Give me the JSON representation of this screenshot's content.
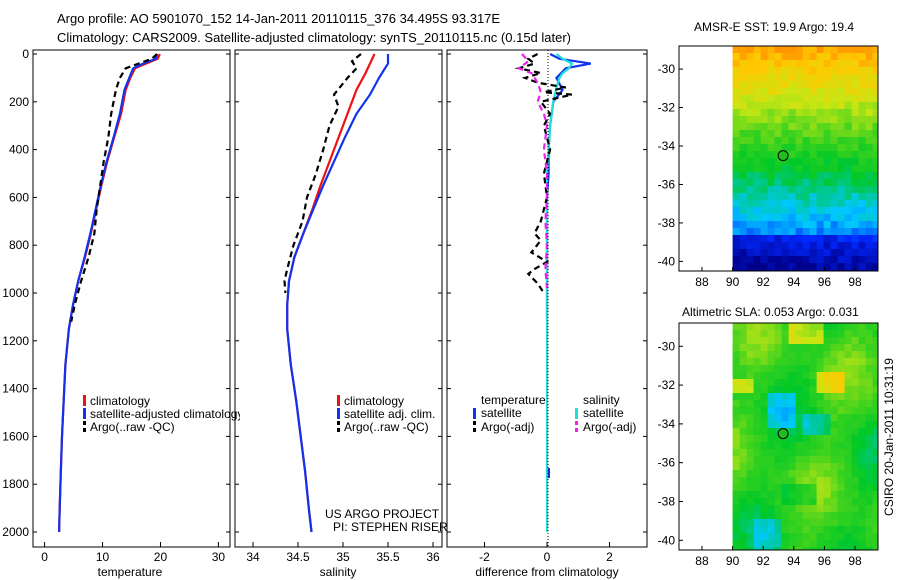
{
  "header": {
    "line1": "Argo profile: AO 5901070_152 14-Jan-2011 20110115_376 34.495S 93.317E",
    "line2": "Climatology: CARS2009. Satellite-adjusted climatology: synTS_20110115.nc (0.15d later)"
  },
  "side_label": "CSIRO 20-Jan-2011 10:31:19",
  "colors": {
    "climatology": "#ee1111",
    "satellite": "#1133ee",
    "argo": "#000000",
    "satellite_salinity": "#22dddd",
    "argo_salinity": "#ee22ee"
  },
  "chart_data": [
    {
      "type": "line",
      "id": "temperature",
      "xlabel": "temperature",
      "xlim": [
        -2,
        32
      ],
      "xticks": [
        0,
        10,
        20,
        30
      ],
      "ylim": [
        0,
        2080
      ],
      "yticks": [
        0,
        200,
        400,
        600,
        800,
        1000,
        1200,
        1400,
        1600,
        1800,
        2000
      ],
      "legend": [
        "climatology",
        "satellite-adjusted climatology",
        "Argo(..raw -QC)"
      ],
      "series": [
        {
          "name": "climatology",
          "style": "solid",
          "color": "#ee1111",
          "points": [
            [
              19.9,
              0
            ],
            [
              19.5,
              20
            ],
            [
              17.5,
              40
            ],
            [
              15.6,
              60
            ],
            [
              14.8,
              100
            ],
            [
              14.0,
              150
            ],
            [
              13.2,
              250
            ],
            [
              12.0,
              350
            ],
            [
              10.8,
              450
            ],
            [
              9.8,
              550
            ],
            [
              8.9,
              650
            ],
            [
              8.0,
              750
            ],
            [
              7.0,
              850
            ],
            [
              5.8,
              950
            ],
            [
              4.9,
              1050
            ],
            [
              4.2,
              1150
            ],
            [
              3.6,
              1300
            ],
            [
              3.3,
              1450
            ],
            [
              3.0,
              1600
            ],
            [
              2.8,
              1750
            ],
            [
              2.6,
              1900
            ],
            [
              2.5,
              2000
            ]
          ]
        },
        {
          "name": "satellite-adjusted climatology",
          "style": "solid",
          "color": "#1133ee",
          "points": [
            [
              19.4,
              0
            ],
            [
              19.2,
              20
            ],
            [
              17.0,
              40
            ],
            [
              15.3,
              60
            ],
            [
              14.6,
              100
            ],
            [
              13.8,
              150
            ],
            [
              13.0,
              250
            ],
            [
              11.9,
              350
            ],
            [
              10.7,
              450
            ],
            [
              9.7,
              550
            ],
            [
              8.8,
              650
            ],
            [
              7.9,
              750
            ],
            [
              6.9,
              850
            ],
            [
              5.8,
              950
            ],
            [
              4.9,
              1050
            ],
            [
              4.2,
              1150
            ],
            [
              3.6,
              1300
            ],
            [
              3.3,
              1450
            ],
            [
              3.0,
              1600
            ],
            [
              2.8,
              1750
            ],
            [
              2.6,
              1900
            ],
            [
              2.5,
              2000
            ]
          ]
        },
        {
          "name": "Argo(..raw -QC)",
          "style": "dashed",
          "color": "#000000",
          "points": [
            [
              19.4,
              0
            ],
            [
              18.5,
              20
            ],
            [
              16.2,
              40
            ],
            [
              14.0,
              60
            ],
            [
              13.0,
              100
            ],
            [
              12.3,
              150
            ],
            [
              11.5,
              250
            ],
            [
              11.0,
              350
            ],
            [
              10.2,
              450
            ],
            [
              9.6,
              550
            ],
            [
              9.0,
              650
            ],
            [
              8.6,
              750
            ],
            [
              7.6,
              850
            ],
            [
              6.3,
              950
            ],
            [
              5.2,
              1050
            ],
            [
              4.6,
              1120
            ]
          ]
        }
      ]
    },
    {
      "type": "line",
      "id": "salinity",
      "xlabel": "salinity",
      "xlim": [
        33.8,
        36.1
      ],
      "xticks": [
        34,
        34.5,
        35,
        35.5,
        36
      ],
      "ylim": [
        0,
        2080
      ],
      "legend": [
        "climatology",
        "satellite adj. clim.",
        "Argo(..raw -QC)"
      ],
      "series": [
        {
          "name": "climatology",
          "style": "solid",
          "color": "#ee1111",
          "points": [
            [
              35.35,
              0
            ],
            [
              35.3,
              40
            ],
            [
              35.25,
              80
            ],
            [
              35.15,
              150
            ],
            [
              35.05,
              250
            ],
            [
              34.95,
              350
            ],
            [
              34.85,
              450
            ],
            [
              34.75,
              550
            ],
            [
              34.66,
              650
            ],
            [
              34.56,
              750
            ],
            [
              34.46,
              850
            ],
            [
              34.4,
              950
            ],
            [
              34.38,
              1050
            ],
            [
              34.38,
              1150
            ],
            [
              34.42,
              1300
            ],
            [
              34.48,
              1450
            ],
            [
              34.53,
              1600
            ],
            [
              34.58,
              1750
            ],
            [
              34.62,
              1900
            ],
            [
              34.65,
              2000
            ]
          ]
        },
        {
          "name": "satellite adj. clim.",
          "style": "solid",
          "color": "#1133ee",
          "points": [
            [
              35.5,
              0
            ],
            [
              35.5,
              40
            ],
            [
              35.4,
              100
            ],
            [
              35.3,
              170
            ],
            [
              35.15,
              250
            ],
            [
              35.02,
              350
            ],
            [
              34.9,
              450
            ],
            [
              34.78,
              550
            ],
            [
              34.67,
              650
            ],
            [
              34.56,
              750
            ],
            [
              34.46,
              850
            ],
            [
              34.4,
              950
            ],
            [
              34.38,
              1050
            ],
            [
              34.38,
              1150
            ],
            [
              34.42,
              1300
            ],
            [
              34.48,
              1450
            ],
            [
              34.53,
              1600
            ],
            [
              34.58,
              1750
            ],
            [
              34.62,
              1900
            ],
            [
              34.65,
              2000
            ]
          ]
        },
        {
          "name": "Argo(..raw -QC)",
          "style": "dashed",
          "color": "#000000",
          "points": [
            [
              35.2,
              0
            ],
            [
              35.1,
              30
            ],
            [
              35.15,
              60
            ],
            [
              35.05,
              100
            ],
            [
              34.9,
              170
            ],
            [
              34.95,
              220
            ],
            [
              34.85,
              300
            ],
            [
              34.78,
              400
            ],
            [
              34.7,
              500
            ],
            [
              34.6,
              600
            ],
            [
              34.55,
              700
            ],
            [
              34.45,
              800
            ],
            [
              34.38,
              900
            ],
            [
              34.35,
              950
            ],
            [
              34.36,
              1000
            ]
          ]
        }
      ]
    },
    {
      "type": "line",
      "id": "difference",
      "xlabel": "difference from climatology",
      "xlim": [
        -3.2,
        3.2
      ],
      "xticks": [
        -2,
        0,
        2
      ],
      "ylim": [
        0,
        2080
      ],
      "legend_titles": [
        "temperature",
        "salinity"
      ],
      "legend": [
        "satellite",
        "Argo(-adj)",
        "satellite",
        "Argo(-adj)"
      ],
      "series": [
        {
          "name": "temperature satellite",
          "style": "solid",
          "color": "#1133ee",
          "points": [
            [
              0.1,
              0
            ],
            [
              0.4,
              20
            ],
            [
              1.4,
              40
            ],
            [
              0.6,
              60
            ],
            [
              0.3,
              100
            ],
            [
              0.5,
              150
            ],
            [
              0.2,
              200
            ],
            [
              0.1,
              300
            ],
            [
              0.05,
              400
            ],
            [
              0.05,
              500
            ],
            [
              0,
              600
            ],
            [
              0,
              800
            ],
            [
              0,
              1000
            ],
            [
              0,
              1100
            ]
          ]
        },
        {
          "name": "satellite salinity",
          "style": "solid",
          "color": "#22dddd",
          "points": [
            [
              0.3,
              0
            ],
            [
              0.5,
              20
            ],
            [
              0.8,
              40
            ],
            [
              0.7,
              60
            ],
            [
              0.5,
              80
            ],
            [
              0.4,
              100
            ],
            [
              0.3,
              140
            ],
            [
              0.2,
              200
            ],
            [
              0.1,
              300
            ],
            [
              0.05,
              400
            ],
            [
              0,
              500
            ],
            [
              0,
              800
            ],
            [
              0,
              1200
            ],
            [
              0,
              1600
            ],
            [
              0,
              2000
            ]
          ]
        },
        {
          "name": "temperature Argo(-adj)",
          "style": "dashed",
          "color": "#000000",
          "points": [
            [
              -0.3,
              0
            ],
            [
              -0.6,
              20
            ],
            [
              -0.4,
              40
            ],
            [
              -0.9,
              60
            ],
            [
              -0.2,
              80
            ],
            [
              -0.7,
              100
            ],
            [
              -0.3,
              120
            ],
            [
              0.6,
              140
            ],
            [
              -0.1,
              160
            ],
            [
              0.8,
              170
            ],
            [
              -0.2,
              200
            ],
            [
              0.1,
              250
            ],
            [
              -0.1,
              300
            ],
            [
              0.1,
              400
            ],
            [
              -0.1,
              500
            ],
            [
              0,
              600
            ],
            [
              -0.2,
              700
            ],
            [
              -0.4,
              750
            ],
            [
              -0.2,
              780
            ],
            [
              -0.5,
              830
            ],
            [
              0,
              870
            ],
            [
              -0.4,
              900
            ],
            [
              -0.6,
              920
            ],
            [
              -0.3,
              960
            ],
            [
              -0.1,
              1000
            ]
          ]
        },
        {
          "name": "salinity Argo(-adj)",
          "style": "dashed",
          "color": "#ee22ee",
          "points": [
            [
              -0.8,
              0
            ],
            [
              -0.6,
              30
            ],
            [
              -0.9,
              60
            ],
            [
              -0.5,
              80
            ],
            [
              -0.3,
              120
            ],
            [
              -0.2,
              160
            ],
            [
              -0.3,
              200
            ],
            [
              -0.1,
              250
            ],
            [
              0,
              300
            ],
            [
              -0.1,
              400
            ],
            [
              0,
              500
            ],
            [
              0,
              600
            ],
            [
              -0.05,
              700
            ],
            [
              0,
              800
            ],
            [
              -0.05,
              900
            ],
            [
              0,
              980
            ]
          ]
        }
      ]
    },
    {
      "type": "heatmap",
      "id": "sst_map",
      "title": "AMSR-E SST: 19.9 Argo: 19.4",
      "xlim": [
        86.5,
        99.5
      ],
      "xticks": [
        88,
        90,
        92,
        94,
        96,
        98
      ],
      "ylim": [
        -40.5,
        -28.8
      ],
      "yticks": [
        -30,
        -32,
        -34,
        -36,
        -38,
        -40
      ],
      "marker": [
        93.3,
        -34.5
      ]
    },
    {
      "type": "heatmap",
      "id": "sla_map",
      "title": "Altimetric SLA: 0.053 Argo: 0.031",
      "xlim": [
        86.5,
        99.5
      ],
      "xticks": [
        88,
        90,
        92,
        94,
        96,
        98
      ],
      "ylim": [
        -40.5,
        -28.8
      ],
      "yticks": [
        -30,
        -32,
        -34,
        -36,
        -38,
        -40
      ],
      "marker": [
        93.3,
        -34.5
      ]
    }
  ]
}
